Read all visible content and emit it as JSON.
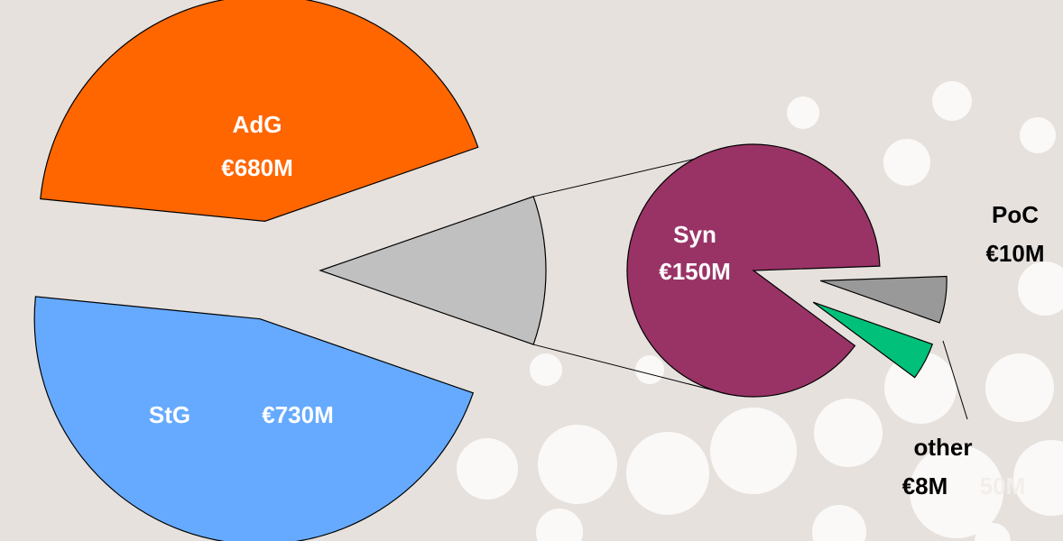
{
  "chart_data": {
    "type": "pie-of-pie",
    "categories": [
      "AdG",
      "StG"
    ],
    "values": [
      680,
      730
    ],
    "value_labels": [
      "€680M",
      "€730M"
    ],
    "colors": [
      "#ff6600",
      "#66aaff"
    ],
    "breakout_color": "#c0c0c0",
    "secondary": {
      "categories": [
        "Syn",
        "PoC",
        "other"
      ],
      "values": [
        150,
        10,
        8
      ],
      "value_labels": [
        "€150M",
        "€10M",
        "€8M"
      ],
      "colors": [
        "#993366",
        "#999999",
        "#00c07a"
      ]
    },
    "annotations": [
      "50M"
    ]
  }
}
